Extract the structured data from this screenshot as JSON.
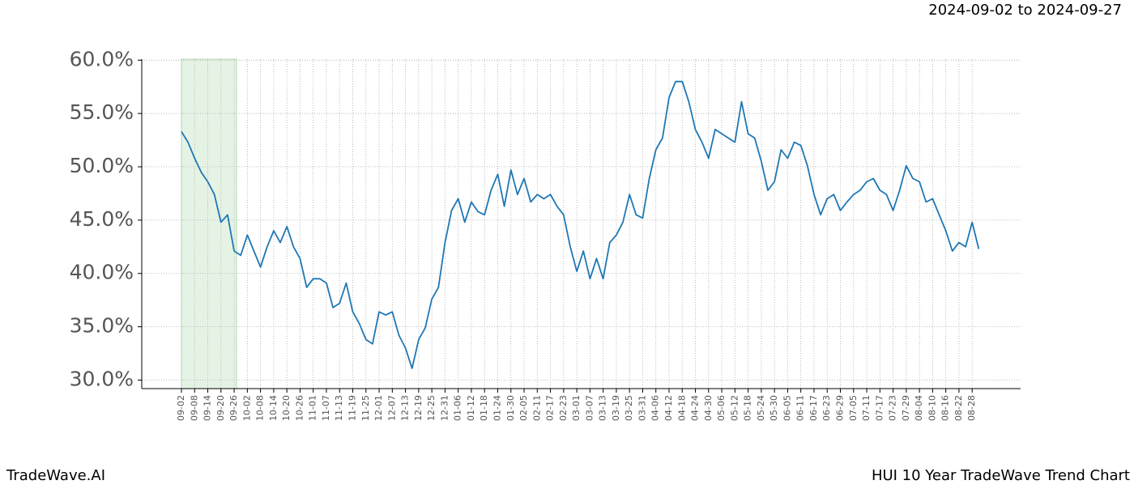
{
  "header": {
    "date_range": "2024-09-02 to 2024-09-27"
  },
  "footer": {
    "brand": "TradeWave.AI",
    "chart_name": "HUI 10 Year TradeWave Trend Chart"
  },
  "chart_data": {
    "type": "line",
    "categories": [
      "09-02",
      null,
      "09-08",
      null,
      "09-14",
      null,
      "09-20",
      null,
      "09-26",
      null,
      "10-02",
      null,
      "10-08",
      null,
      "10-14",
      null,
      "10-20",
      null,
      "10-26",
      null,
      "11-01",
      null,
      "11-07",
      null,
      "11-13",
      null,
      "11-19",
      null,
      "11-25",
      null,
      "12-01",
      null,
      "12-07",
      null,
      "12-13",
      null,
      "12-19",
      null,
      "12-25",
      null,
      "12-31",
      null,
      "01-06",
      null,
      "01-12",
      null,
      "01-18",
      null,
      "01-24",
      null,
      "01-30",
      null,
      "02-05",
      null,
      "02-11",
      null,
      "02-17",
      null,
      "02-23",
      null,
      "03-01",
      null,
      "03-07",
      null,
      "03-13",
      null,
      "03-19",
      null,
      "03-25",
      null,
      "03-31",
      null,
      "04-06",
      null,
      "04-12",
      null,
      "04-18",
      null,
      "04-24",
      null,
      "04-30",
      null,
      "05-06",
      null,
      "05-12",
      null,
      "05-18",
      null,
      "05-24",
      null,
      "05-30",
      null,
      "06-05",
      null,
      "06-11",
      null,
      "06-17",
      null,
      "06-23",
      null,
      "06-29",
      null,
      "07-05",
      null,
      "07-11",
      null,
      "07-17",
      null,
      "07-23",
      null,
      "07-29",
      null,
      "08-04",
      null,
      "08-10",
      null,
      "08-16",
      null,
      "08-22",
      null,
      "08-28",
      null
    ],
    "series": [
      {
        "color": "#1f77b4",
        "values": [
          53.3,
          52.3,
          50.8,
          49.5,
          48.6,
          47.4,
          44.8,
          45.5,
          42.1,
          41.7,
          43.6,
          42.1,
          40.6,
          42.5,
          44.0,
          42.9,
          44.4,
          42.5,
          41.4,
          38.7,
          39.5,
          39.5,
          39.1,
          36.8,
          37.2,
          39.1,
          36.4,
          35.3,
          33.8,
          33.4,
          36.4,
          36.1,
          36.4,
          34.2,
          33.0,
          31.1,
          33.8,
          34.9,
          37.6,
          38.7,
          42.9,
          45.9,
          47.0,
          44.8,
          46.7,
          45.8,
          45.5,
          47.8,
          49.3,
          46.3,
          49.7,
          47.4,
          48.9,
          46.7,
          47.4,
          47.0,
          47.4,
          46.3,
          45.5,
          42.5,
          40.2,
          42.1,
          39.5,
          41.4,
          39.5,
          42.9,
          43.6,
          44.8,
          47.4,
          45.5,
          45.2,
          48.9,
          51.6,
          52.7,
          56.5,
          58.0,
          58.0,
          56.1,
          53.5,
          52.3,
          50.8,
          53.5,
          53.1,
          52.7,
          52.3,
          56.1,
          53.1,
          52.7,
          50.5,
          47.8,
          48.6,
          51.6,
          50.8,
          52.3,
          52.0,
          50.1,
          47.4,
          45.5,
          47.0,
          47.4,
          45.9,
          46.7,
          47.4,
          47.8,
          48.6,
          48.9,
          47.8,
          47.4,
          45.9,
          47.8,
          50.1,
          48.9,
          48.6,
          46.7,
          47.0,
          45.5,
          44.0,
          42.1,
          42.9,
          42.5,
          44.8,
          42.3
        ]
      }
    ],
    "ylim": [
      29.2,
      60.1
    ],
    "yticks": [
      {
        "value": 30,
        "label": "30.0%"
      },
      {
        "value": 35,
        "label": "35.0%"
      },
      {
        "value": 40,
        "label": "40.0%"
      },
      {
        "value": 45,
        "label": "45.0%"
      },
      {
        "value": 50,
        "label": "50.0%"
      },
      {
        "value": 55,
        "label": "55.0%"
      },
      {
        "value": 60,
        "label": "60.0%"
      }
    ],
    "grid": true,
    "highlight": {
      "from": "09-02",
      "to": "09-26",
      "color": "#2ca02c"
    }
  }
}
